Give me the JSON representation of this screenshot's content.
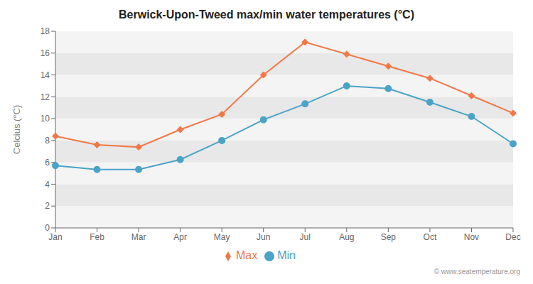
{
  "chart_data": {
    "type": "line",
    "title": "Berwick-Upon-Tweed max/min water temperatures (°C)",
    "ylabel": "Celcius (°C)",
    "categories": [
      "Jan",
      "Feb",
      "Mar",
      "Apr",
      "May",
      "Jun",
      "Jul",
      "Aug",
      "Sep",
      "Oct",
      "Nov",
      "Dec"
    ],
    "series": [
      {
        "name": "Max",
        "color": "#f07848",
        "marker": "diamond",
        "values": [
          8.4,
          7.6,
          7.4,
          9.0,
          10.4,
          14.0,
          17.0,
          15.9,
          14.8,
          13.7,
          12.1,
          10.5
        ]
      },
      {
        "name": "Min",
        "color": "#4ba3c7",
        "marker": "circle",
        "values": [
          5.7,
          5.35,
          5.35,
          6.25,
          8.0,
          9.9,
          11.35,
          13.0,
          12.75,
          11.5,
          10.2,
          7.7
        ]
      }
    ],
    "ylim": [
      0,
      18
    ],
    "yticks": [
      0,
      2,
      4,
      6,
      8,
      10,
      12,
      14,
      16,
      18
    ],
    "grid": false,
    "legend": "bottom",
    "annotations": [
      "© www.seatemperature.org"
    ]
  }
}
